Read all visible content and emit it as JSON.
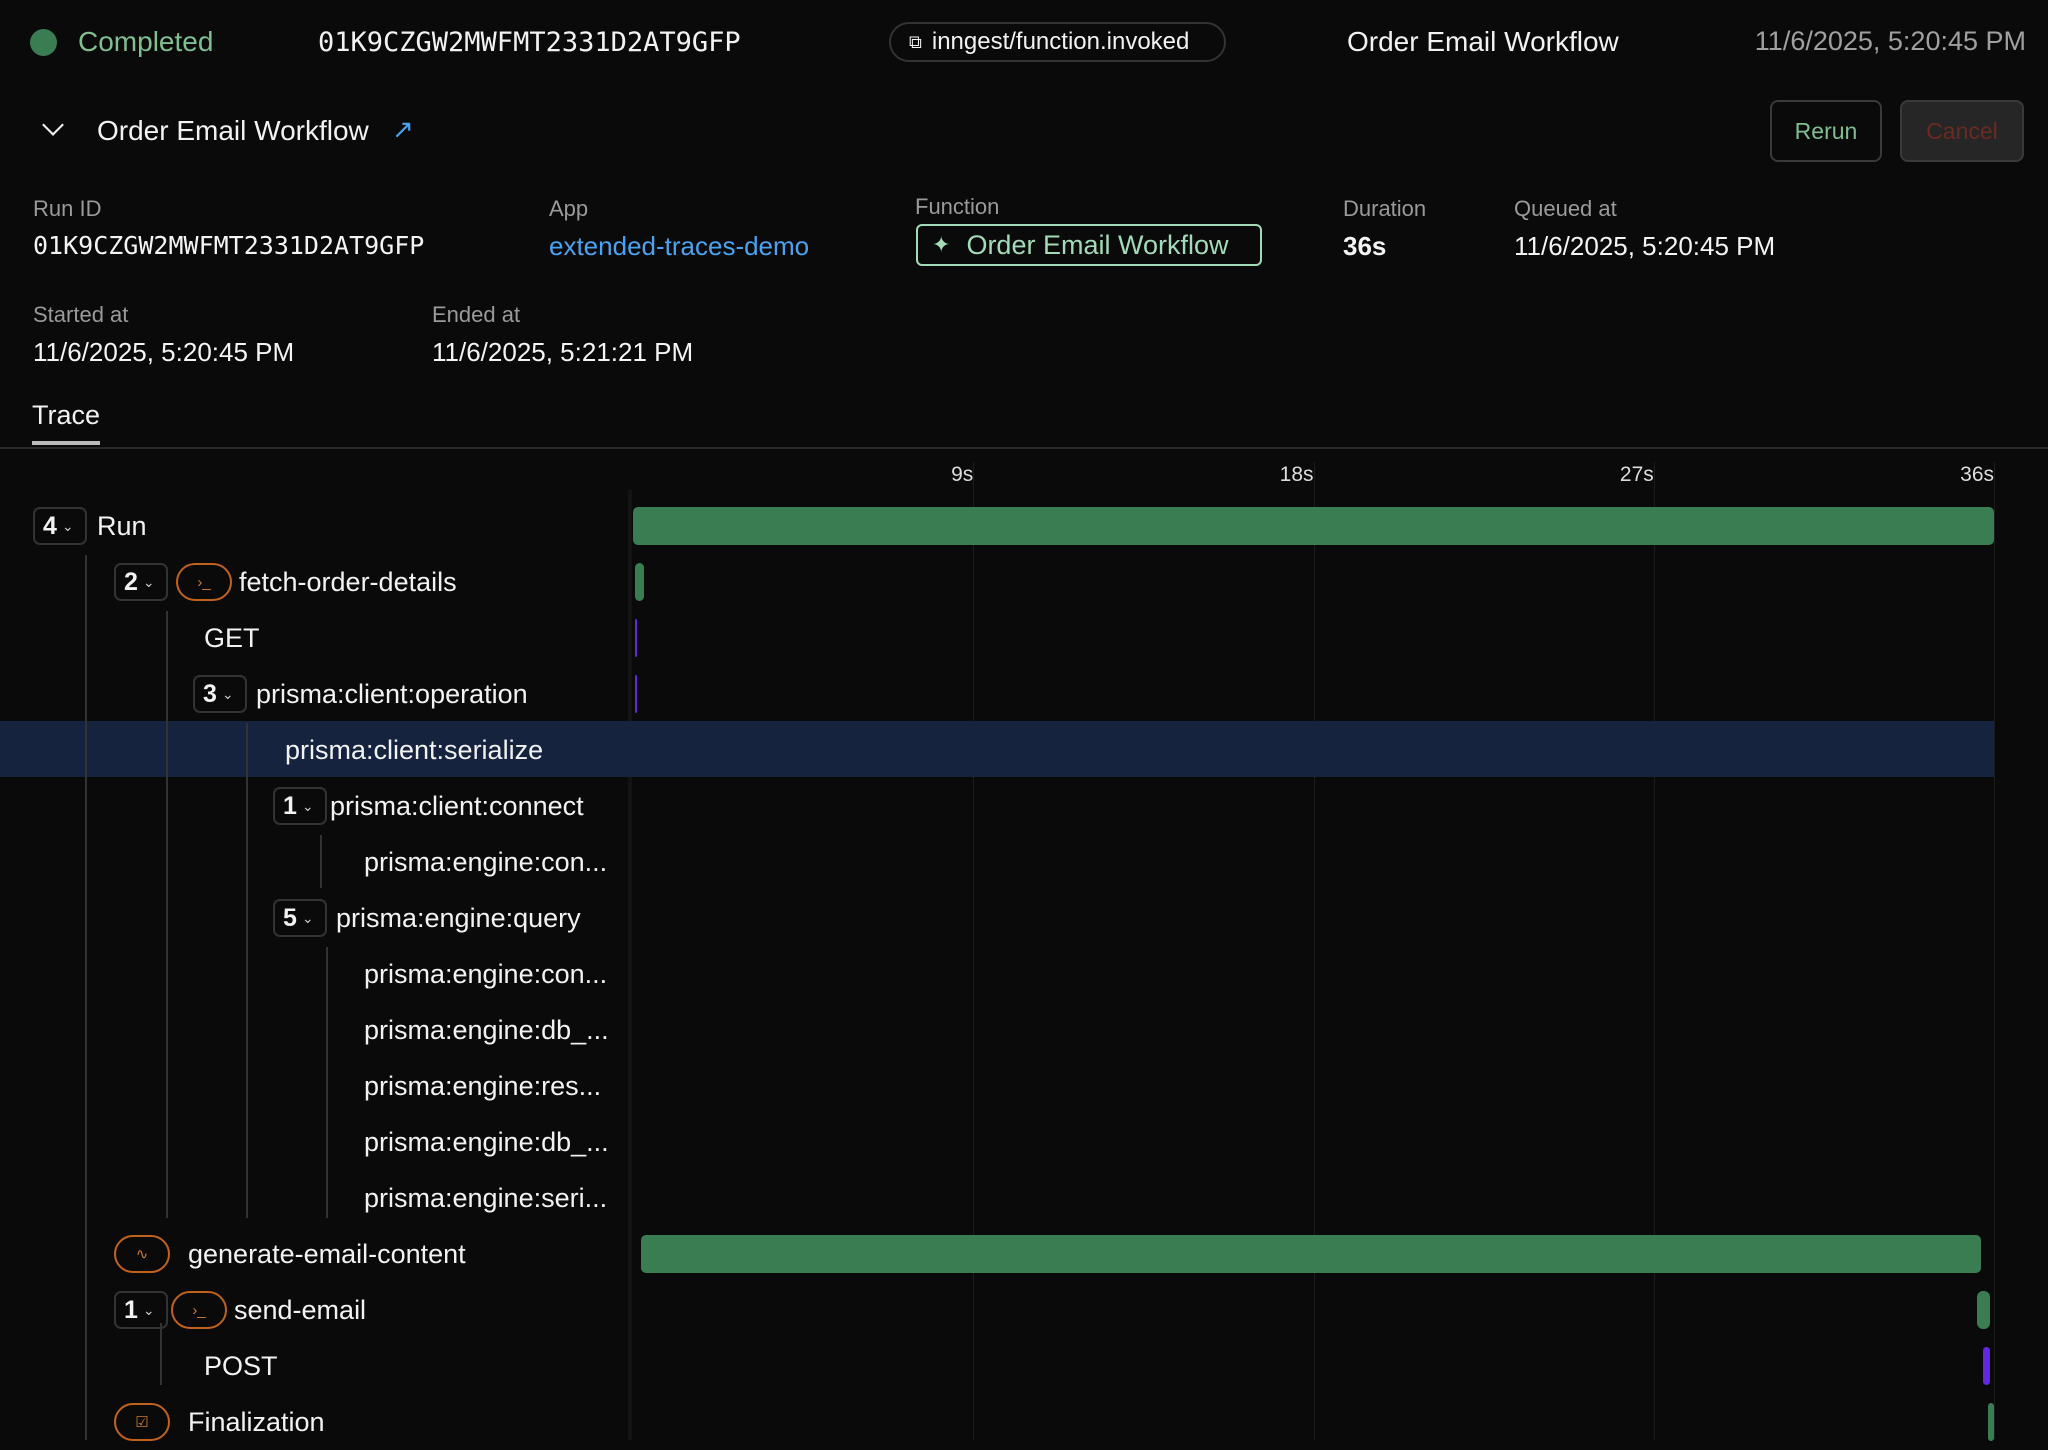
{
  "topbar": {
    "status": "Completed",
    "status_color": "#3a7d53",
    "run_id": "01K9CZGW2MWFMT2331D2AT9GFP",
    "event_name": "inngest/function.invoked",
    "function_name": "Order Email Workflow",
    "timestamp": "11/6/2025, 5:20:45 PM"
  },
  "header": {
    "title": "Order Email Workflow",
    "rerun_label": "Rerun",
    "cancel_label": "Cancel"
  },
  "details": {
    "run_id_label": "Run ID",
    "run_id": "01K9CZGW2MWFMT2331D2AT9GFP",
    "app_label": "App",
    "app": "extended-traces-demo",
    "function_label": "Function",
    "function": "Order Email Workflow",
    "duration_label": "Duration",
    "duration": "36s",
    "queued_label": "Queued at",
    "queued": "11/6/2025, 5:20:45 PM",
    "started_label": "Started at",
    "started": "11/6/2025, 5:20:45 PM",
    "ended_label": "Ended at",
    "ended": "11/6/2025, 5:21:21 PM"
  },
  "tabs": {
    "trace": "Trace"
  },
  "timeline": {
    "max_seconds": 36,
    "ticks": [
      {
        "t": 9,
        "label": "9s"
      },
      {
        "t": 18,
        "label": "18s"
      },
      {
        "t": 27,
        "label": "27s"
      },
      {
        "t": 36,
        "label": "36s"
      }
    ],
    "colors": {
      "step": "#3a7d53",
      "http": "#6229dc",
      "selected": "#15233f"
    }
  },
  "trace": [
    {
      "name": "Run",
      "count": "4",
      "icon": null,
      "start": 0,
      "end": 36,
      "kind": "step"
    },
    {
      "name": "fetch-order-details",
      "count": "2",
      "icon": "terminal-icon",
      "start": 0.05,
      "end": 0.3,
      "kind": "step"
    },
    {
      "name": "GET",
      "count": null,
      "icon": null,
      "start": 0.05,
      "end": 0.1,
      "kind": "http"
    },
    {
      "name": "prisma:client:operation",
      "count": "3",
      "icon": null,
      "start": 0.05,
      "end": 0.1,
      "kind": "http"
    },
    {
      "name": "prisma:client:serialize",
      "count": null,
      "icon": null,
      "selected": true
    },
    {
      "name": "prisma:client:connect",
      "count": "1",
      "icon": null
    },
    {
      "name": "prisma:engine:con...",
      "count": null,
      "icon": null
    },
    {
      "name": "prisma:engine:query",
      "count": "5",
      "icon": null
    },
    {
      "name": "prisma:engine:con...",
      "count": null,
      "icon": null
    },
    {
      "name": "prisma:engine:db_...",
      "count": null,
      "icon": null
    },
    {
      "name": "prisma:engine:res...",
      "count": null,
      "icon": null
    },
    {
      "name": "prisma:engine:db_...",
      "count": null,
      "icon": null
    },
    {
      "name": "prisma:engine:seri...",
      "count": null,
      "icon": null
    },
    {
      "name": "generate-email-content",
      "count": null,
      "icon": "ai-flow-icon",
      "start": 0.2,
      "end": 35.65,
      "kind": "step"
    },
    {
      "name": "send-email",
      "count": "1",
      "icon": "terminal-icon",
      "start": 35.55,
      "end": 35.9,
      "kind": "step"
    },
    {
      "name": "POST",
      "count": null,
      "icon": null,
      "start": 35.7,
      "end": 35.9,
      "kind": "http"
    },
    {
      "name": "Finalization",
      "count": null,
      "icon": "checkbox-icon",
      "start": 35.85,
      "end": 36,
      "kind": "step"
    }
  ]
}
